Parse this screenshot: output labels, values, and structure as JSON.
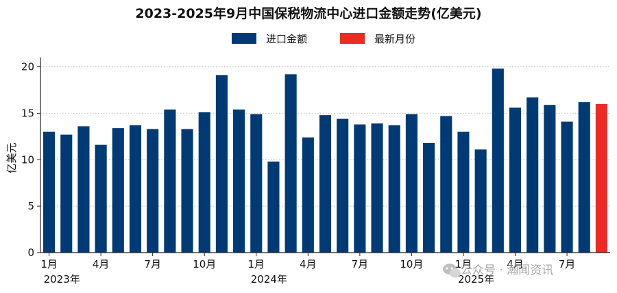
{
  "chart_data": {
    "type": "bar",
    "title": "2023-2025年9月中国保税物流中心进口金额走势(亿美元)",
    "ylabel": "亿美元",
    "xlabel": "",
    "ylim": [
      0,
      21
    ],
    "yticks": [
      0,
      5,
      10,
      15,
      20
    ],
    "grid": true,
    "legend_position": "top",
    "legend": [
      {
        "label": "进口金额",
        "color": "#003a75"
      },
      {
        "label": "最新月份",
        "color": "#ee2a24"
      }
    ],
    "categories": [
      "2023-01",
      "2023-02",
      "2023-03",
      "2023-04",
      "2023-05",
      "2023-06",
      "2023-07",
      "2023-08",
      "2023-09",
      "2023-10",
      "2023-11",
      "2023-12",
      "2024-01",
      "2024-02",
      "2024-03",
      "2024-04",
      "2024-05",
      "2024-06",
      "2024-07",
      "2024-08",
      "2024-09",
      "2024-10",
      "2024-11",
      "2024-12",
      "2025-01",
      "2025-02",
      "2025-03",
      "2025-04",
      "2025-05",
      "2025-06",
      "2025-07",
      "2025-08",
      "2025-09"
    ],
    "values": [
      13.0,
      12.7,
      13.6,
      11.6,
      13.4,
      13.7,
      13.3,
      15.4,
      13.3,
      15.1,
      19.1,
      15.4,
      14.9,
      9.8,
      19.2,
      12.4,
      14.8,
      14.4,
      13.8,
      13.9,
      13.7,
      14.9,
      11.8,
      14.7,
      13.0,
      11.1,
      19.8,
      15.6,
      16.7,
      15.9,
      14.1,
      16.2,
      16.0
    ],
    "highlight_index": 32,
    "xtick_labels": [
      {
        "index": 0,
        "label": "1月"
      },
      {
        "index": 3,
        "label": "4月"
      },
      {
        "index": 6,
        "label": "7月"
      },
      {
        "index": 9,
        "label": "10月"
      },
      {
        "index": 12,
        "label": "1月"
      },
      {
        "index": 15,
        "label": "4月"
      },
      {
        "index": 18,
        "label": "7月"
      },
      {
        "index": 21,
        "label": "10月"
      },
      {
        "index": 24,
        "label": "1月"
      },
      {
        "index": 27,
        "label": "4月"
      },
      {
        "index": 30,
        "label": "7月"
      }
    ],
    "year_labels": [
      {
        "index": 0,
        "label": "2023年"
      },
      {
        "index": 12,
        "label": "2024年"
      },
      {
        "index": 24,
        "label": "2025年"
      }
    ]
  },
  "watermark": {
    "text": "公众号 · 瀚闻资讯",
    "icon": "wechat-icon"
  }
}
